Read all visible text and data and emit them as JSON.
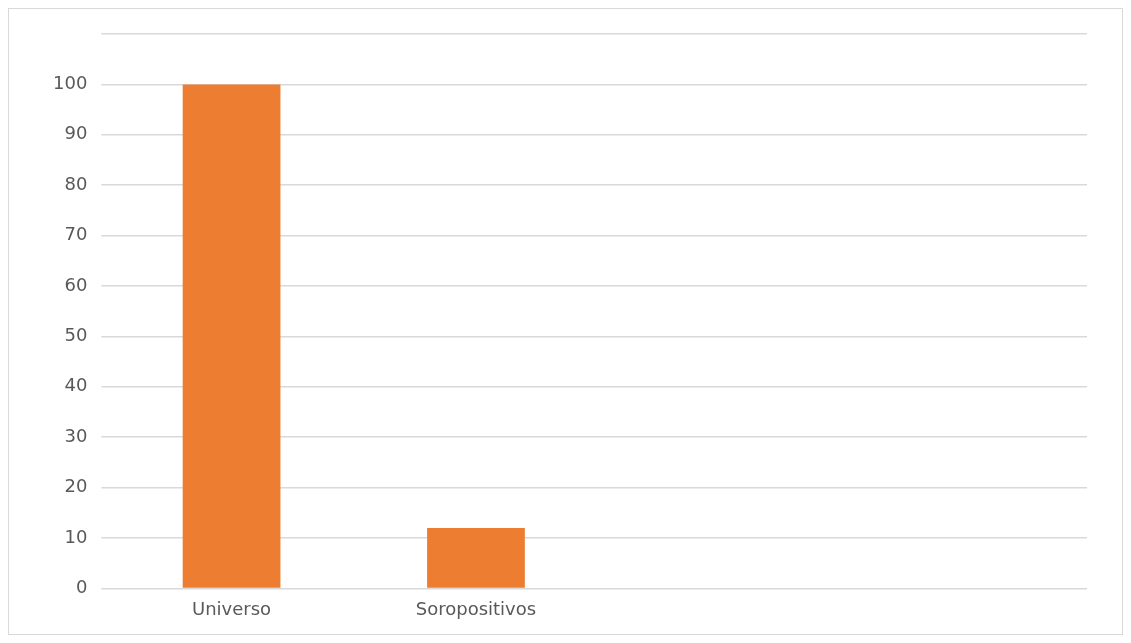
{
  "chart_data": {
    "type": "bar",
    "categories": [
      "Universo",
      "Soropositivos",
      null,
      null
    ],
    "values": [
      100,
      12,
      null,
      null
    ],
    "color": "#ed7d31",
    "ylim": [
      0,
      110
    ],
    "yticks": [
      0,
      10,
      20,
      30,
      40,
      50,
      60,
      70,
      80,
      90,
      100,
      {
        "value": 110,
        "label": null
      }
    ],
    "grid": "y",
    "legend": false
  }
}
